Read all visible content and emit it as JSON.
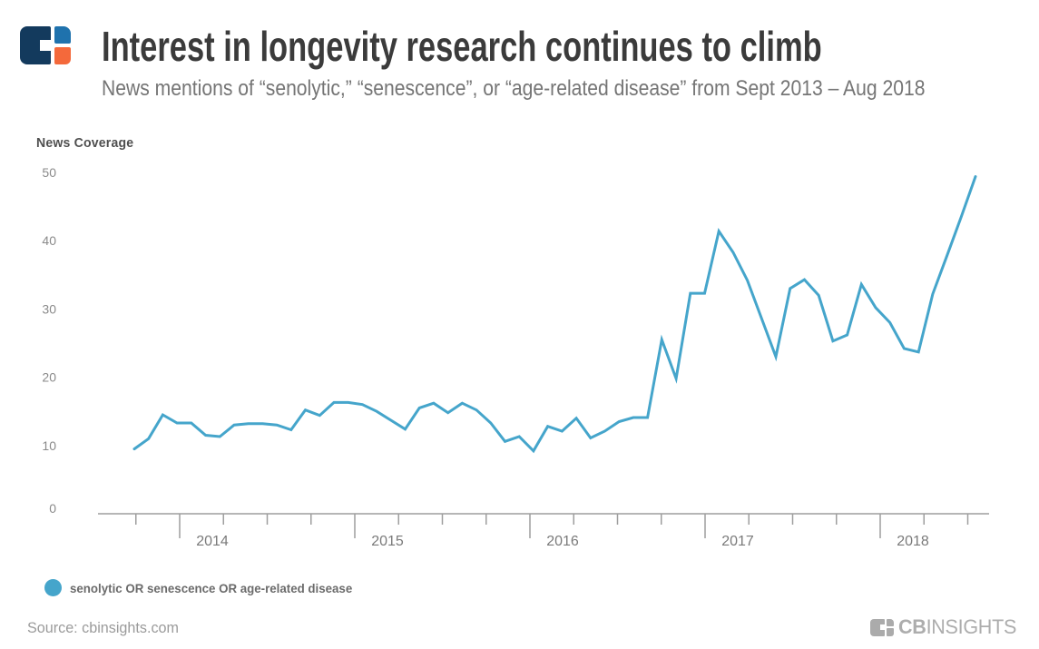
{
  "header": {
    "title": "Interest in longevity research continues to climb",
    "subtitle": "News mentions of “senolytic,” “senescence”, or “age-related disease” from Sept 2013 – Aug 2018"
  },
  "chart_data": {
    "type": "line",
    "title": "Interest in longevity research continues to climb",
    "subtitle": "News mentions of “senolytic,” “senescence”, or “age-related disease” from Sept 2013 – Aug 2018",
    "ylabel": "News Coverage",
    "xlabel": "",
    "ylim": [
      0,
      50
    ],
    "y_ticks": [
      0,
      10,
      20,
      30,
      40,
      50
    ],
    "x_start": "Sep 2013",
    "x_end": "Aug 2018",
    "x_year_labels": [
      "2014",
      "2015",
      "2016",
      "2017",
      "2018"
    ],
    "grid": false,
    "legend_position": "bottom-left",
    "series": [
      {
        "name": "senolytic OR senescence OR age-related disease",
        "color": "#45a5cb",
        "values": [
          9.5,
          11.0,
          14.5,
          13.3,
          13.3,
          11.5,
          11.3,
          13.0,
          13.2,
          13.2,
          13.0,
          12.3,
          15.2,
          14.4,
          16.3,
          16.3,
          16.0,
          15.0,
          13.7,
          12.4,
          15.5,
          16.2,
          14.8,
          16.2,
          15.2,
          13.3,
          10.6,
          11.3,
          9.2,
          12.8,
          12.1,
          14.0,
          11.1,
          12.1,
          13.5,
          14.1,
          14.1,
          25.5,
          19.8,
          32.3,
          32.3,
          41.4,
          38.3,
          34.2,
          28.6,
          23.0,
          33.0,
          34.3,
          32.0,
          25.3,
          26.2,
          33.6,
          30.2,
          28.0,
          24.2,
          23.7,
          32.2,
          37.8,
          43.5,
          49.4
        ]
      }
    ]
  },
  "legend": {
    "label": "senolytic OR senescence OR age-related disease",
    "marker_color": "#45a5cb"
  },
  "footer": {
    "source": "Source: cbinsights.com",
    "brand_bold": "CB",
    "brand_light": "INSIGHTS"
  },
  "colors": {
    "line": "#45a5cb",
    "axis": "#9e9e9e",
    "tick_label": "#8a8a8a",
    "year_label": "#7a7a7a",
    "logo_navy": "#133a5d",
    "logo_blue": "#1f72ad",
    "logo_orange": "#f4693b",
    "footer_gray": "#adadad"
  }
}
